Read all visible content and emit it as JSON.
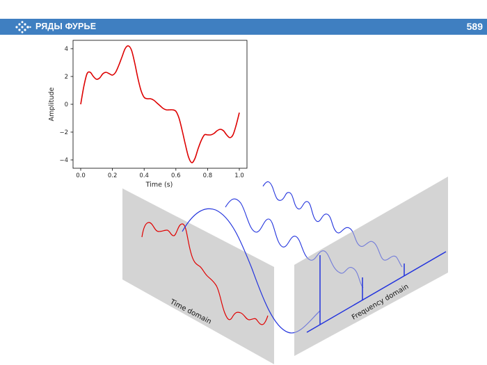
{
  "header": {
    "title": "РЯДЫ ФУРЬЕ",
    "page_number": "589",
    "icon": "chevrons-right-icon",
    "accent_color": "#3f7fc1"
  },
  "chart_data": {
    "type": "line",
    "title": "",
    "xlabel": "Time (s)",
    "ylabel": "Amplitude",
    "xlim": [
      0,
      1
    ],
    "ylim": [
      -4.6,
      4.6
    ],
    "grid": false,
    "x_ticks": [
      "0.0",
      "0.2",
      "0.4",
      "0.6",
      "0.8",
      "1.0"
    ],
    "y_ticks": [
      "4",
      "2",
      "0",
      "−2",
      "−4"
    ],
    "x_tick_values": [
      0,
      0.2,
      0.4,
      0.6,
      0.8,
      1.0
    ],
    "y_tick_values": [
      4,
      2,
      0,
      -2,
      -4
    ],
    "series": [
      {
        "color": "#dd0000",
        "x": [
          0,
          0.02,
          0.04,
          0.06,
          0.08,
          0.1,
          0.12,
          0.14,
          0.16,
          0.18,
          0.2,
          0.22,
          0.24,
          0.26,
          0.28,
          0.3,
          0.32,
          0.34,
          0.36,
          0.38,
          0.4,
          0.42,
          0.44,
          0.46,
          0.48,
          0.5,
          0.52,
          0.54,
          0.56,
          0.58,
          0.6,
          0.62,
          0.64,
          0.66,
          0.68,
          0.7,
          0.72,
          0.74,
          0.76,
          0.78,
          0.8,
          0.82,
          0.84,
          0.86,
          0.88,
          0.9,
          0.92,
          0.94,
          0.96,
          0.98,
          1.0
        ],
        "y": [
          0.0,
          1.3,
          2.2,
          2.3,
          2.0,
          1.8,
          1.9,
          2.2,
          2.3,
          2.2,
          2.1,
          2.3,
          2.8,
          3.4,
          4.0,
          4.2,
          3.9,
          3.0,
          1.9,
          1.0,
          0.5,
          0.4,
          0.4,
          0.3,
          0.1,
          -0.1,
          -0.3,
          -0.4,
          -0.4,
          -0.4,
          -0.5,
          -1.0,
          -1.9,
          -2.9,
          -3.8,
          -4.2,
          -3.9,
          -3.2,
          -2.6,
          -2.2,
          -2.2,
          -2.2,
          -2.1,
          -1.9,
          -1.8,
          -1.9,
          -2.2,
          -2.4,
          -2.2,
          -1.5,
          -0.6
        ]
      }
    ]
  },
  "diagram": {
    "time_domain_label": "Time domain",
    "frequency_domain_label": "Frequency domain"
  }
}
